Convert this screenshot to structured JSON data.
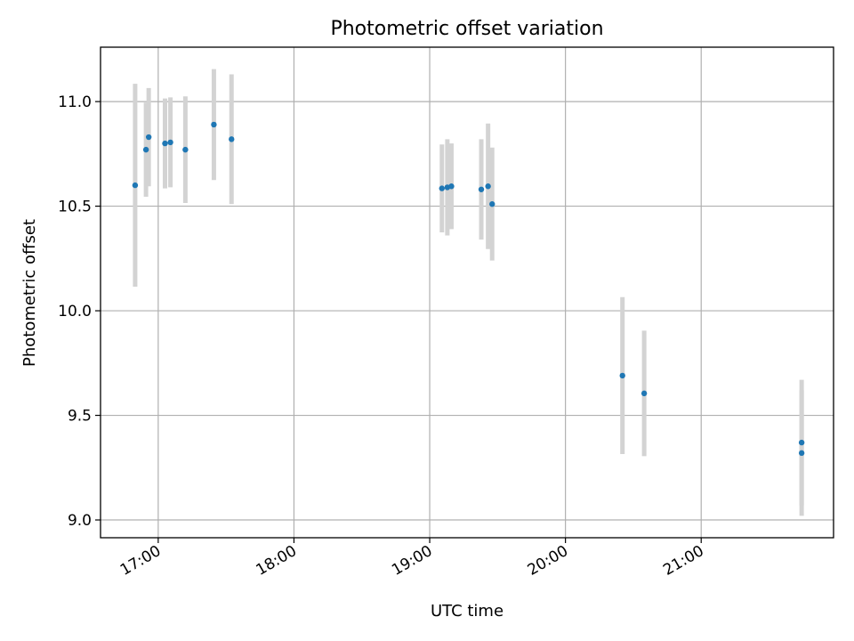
{
  "chart_data": {
    "type": "scatter",
    "title": "Photometric offset variation",
    "xlabel": "UTC time",
    "ylabel": "Photometric offset",
    "x_unit": "hours UTC",
    "xlim": [
      16.575,
      21.975
    ],
    "ylim": [
      8.915,
      11.26
    ],
    "x_ticks": [
      {
        "value": 17,
        "label": "17:00"
      },
      {
        "value": 18,
        "label": "18:00"
      },
      {
        "value": 19,
        "label": "19:00"
      },
      {
        "value": 20,
        "label": "20:00"
      },
      {
        "value": 21,
        "label": "21:00"
      }
    ],
    "y_ticks": [
      {
        "value": 9.0,
        "label": "9.0"
      },
      {
        "value": 9.5,
        "label": "9.5"
      },
      {
        "value": 10.0,
        "label": "10.0"
      },
      {
        "value": 10.5,
        "label": "10.5"
      },
      {
        "value": 11.0,
        "label": "11.0"
      }
    ],
    "grid": true,
    "series": [
      {
        "name": "offset",
        "points": [
          {
            "x": 16.83,
            "y": 10.6,
            "err": 0.485
          },
          {
            "x": 16.91,
            "y": 10.77,
            "err": 0.225
          },
          {
            "x": 16.93,
            "y": 10.83,
            "err": 0.235
          },
          {
            "x": 17.05,
            "y": 10.8,
            "err": 0.215
          },
          {
            "x": 17.09,
            "y": 10.805,
            "err": 0.215
          },
          {
            "x": 17.2,
            "y": 10.77,
            "err": 0.255
          },
          {
            "x": 17.41,
            "y": 10.89,
            "err": 0.265
          },
          {
            "x": 17.54,
            "y": 10.82,
            "err": 0.31
          },
          {
            "x": 19.09,
            "y": 10.585,
            "err": 0.21
          },
          {
            "x": 19.13,
            "y": 10.59,
            "err": 0.23
          },
          {
            "x": 19.16,
            "y": 10.595,
            "err": 0.205
          },
          {
            "x": 19.38,
            "y": 10.58,
            "err": 0.24
          },
          {
            "x": 19.43,
            "y": 10.595,
            "err": 0.3
          },
          {
            "x": 19.46,
            "y": 10.51,
            "err": 0.27
          },
          {
            "x": 20.42,
            "y": 9.69,
            "err": 0.375
          },
          {
            "x": 20.58,
            "y": 9.605,
            "err": 0.3
          },
          {
            "x": 21.74,
            "y": 9.37,
            "err": 0.3
          },
          {
            "x": 21.74,
            "y": 9.32,
            "err": 0.3
          }
        ]
      }
    ],
    "colors": {
      "point": "#1f77b4",
      "errorbar": "#d3d3d3",
      "grid": "#b0b0b0",
      "axis": "#000000"
    }
  }
}
